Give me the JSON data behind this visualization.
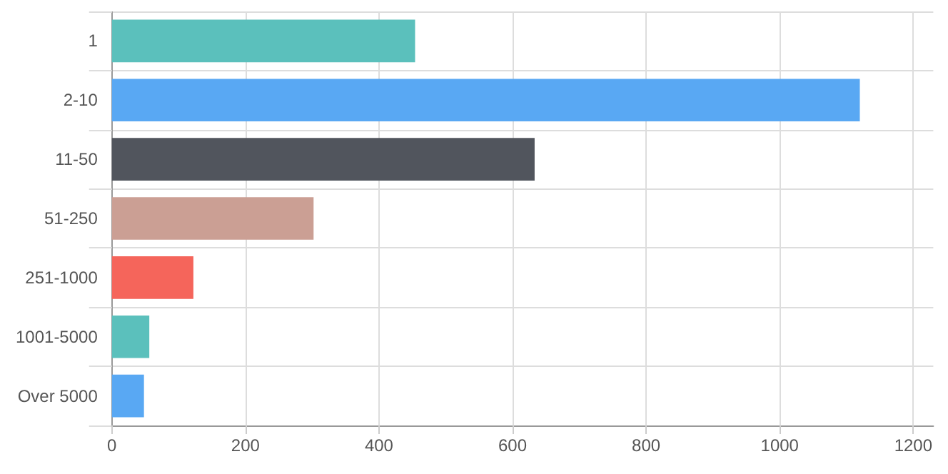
{
  "chart_data": {
    "type": "bar",
    "orientation": "horizontal",
    "categories": [
      "1",
      "2-10",
      "11-50",
      "51-250",
      "251-1000",
      "1001-5000",
      "Over 5000"
    ],
    "values": [
      454,
      1120,
      633,
      302,
      122,
      56,
      48
    ],
    "colors": [
      "#5bc0bc",
      "#59a8f3",
      "#51555d",
      "#cb9f94",
      "#f5655b",
      "#5bc0bc",
      "#59a8f3"
    ],
    "xlim": [
      0,
      1230
    ],
    "xticks": [
      0,
      200,
      400,
      600,
      800,
      1000,
      1200
    ],
    "grid": true
  }
}
